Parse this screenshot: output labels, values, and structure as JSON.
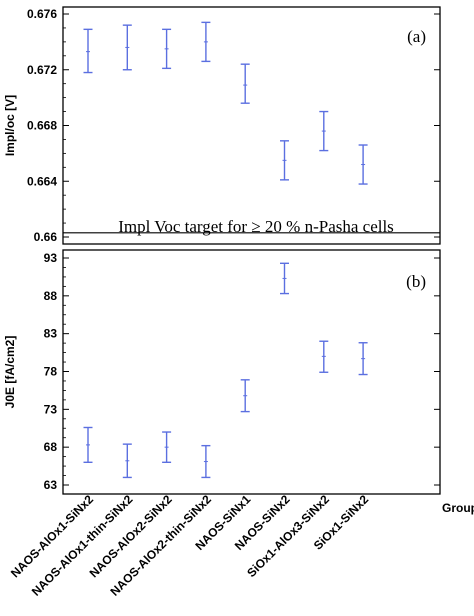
{
  "chart_data": [
    {
      "type": "scatter",
      "panel_label": "(a)",
      "ylabel": "Impl/oc [V]",
      "ylim": [
        0.66,
        0.676
      ],
      "yticks": [
        0.66,
        0.664,
        0.668,
        0.672,
        0.676
      ],
      "ytick_labels": [
        "0.66",
        "0.664",
        "0.668",
        "0.672",
        "0.676"
      ],
      "annotation": "Impl Voc target for ≥ 20 % n-Pasha cells",
      "target_line": 0.6603,
      "categories": [
        "NAOS-AlOx1-SiNx2",
        "NAOS-AlOx1-thin-SiNx2",
        "NAOS-AlOx2-SiNx2",
        "NAOS-AlOx2-thin-SiNx2",
        "NAOS-SiNx1",
        "NAOS-SiNx2",
        "SiOx1-AlOx3-SiNx2",
        "SiOx1-SiNx2"
      ],
      "series": [
        {
          "mean": [
            0.6733,
            0.6736,
            0.6735,
            0.674,
            0.6709,
            0.6655,
            0.6676,
            0.6652
          ],
          "lower": [
            0.6718,
            0.672,
            0.6721,
            0.6726,
            0.6696,
            0.6641,
            0.6662,
            0.6638
          ],
          "upper": [
            0.6749,
            0.6752,
            0.6749,
            0.6754,
            0.6724,
            0.6669,
            0.669,
            0.6666
          ]
        }
      ],
      "grid": false,
      "color": "#5b6fe0"
    },
    {
      "type": "scatter",
      "panel_label": "(b)",
      "ylabel": "J0E [fA/cm2]",
      "ylim": [
        62.5,
        93
      ],
      "yticks": [
        63,
        68,
        73,
        78,
        83,
        88,
        93
      ],
      "ytick_labels": [
        "63",
        "68",
        "73",
        "78",
        "83",
        "88",
        "93"
      ],
      "xlabel": "Group",
      "categories": [
        "NAOS-AlOx1-SiNx2",
        "NAOS-AlOx1-thin-SiNx2",
        "NAOS-AlOx2-SiNx2",
        "NAOS-AlOx2-thin-SiNx2",
        "NAOS-SiNx1",
        "NAOS-SiNx2",
        "SiOx1-AlOx3-SiNx2",
        "SiOx1-SiNx2"
      ],
      "series": [
        {
          "mean": [
            68.3,
            66.2,
            68.0,
            66.1,
            74.8,
            90.3,
            80.0,
            79.7
          ],
          "lower": [
            66.0,
            64.0,
            66.0,
            64.0,
            72.7,
            88.3,
            77.9,
            77.6
          ],
          "upper": [
            70.6,
            68.4,
            70.0,
            68.2,
            76.9,
            92.3,
            82.0,
            81.8
          ]
        }
      ],
      "grid": false,
      "color": "#5b6fe0"
    }
  ]
}
